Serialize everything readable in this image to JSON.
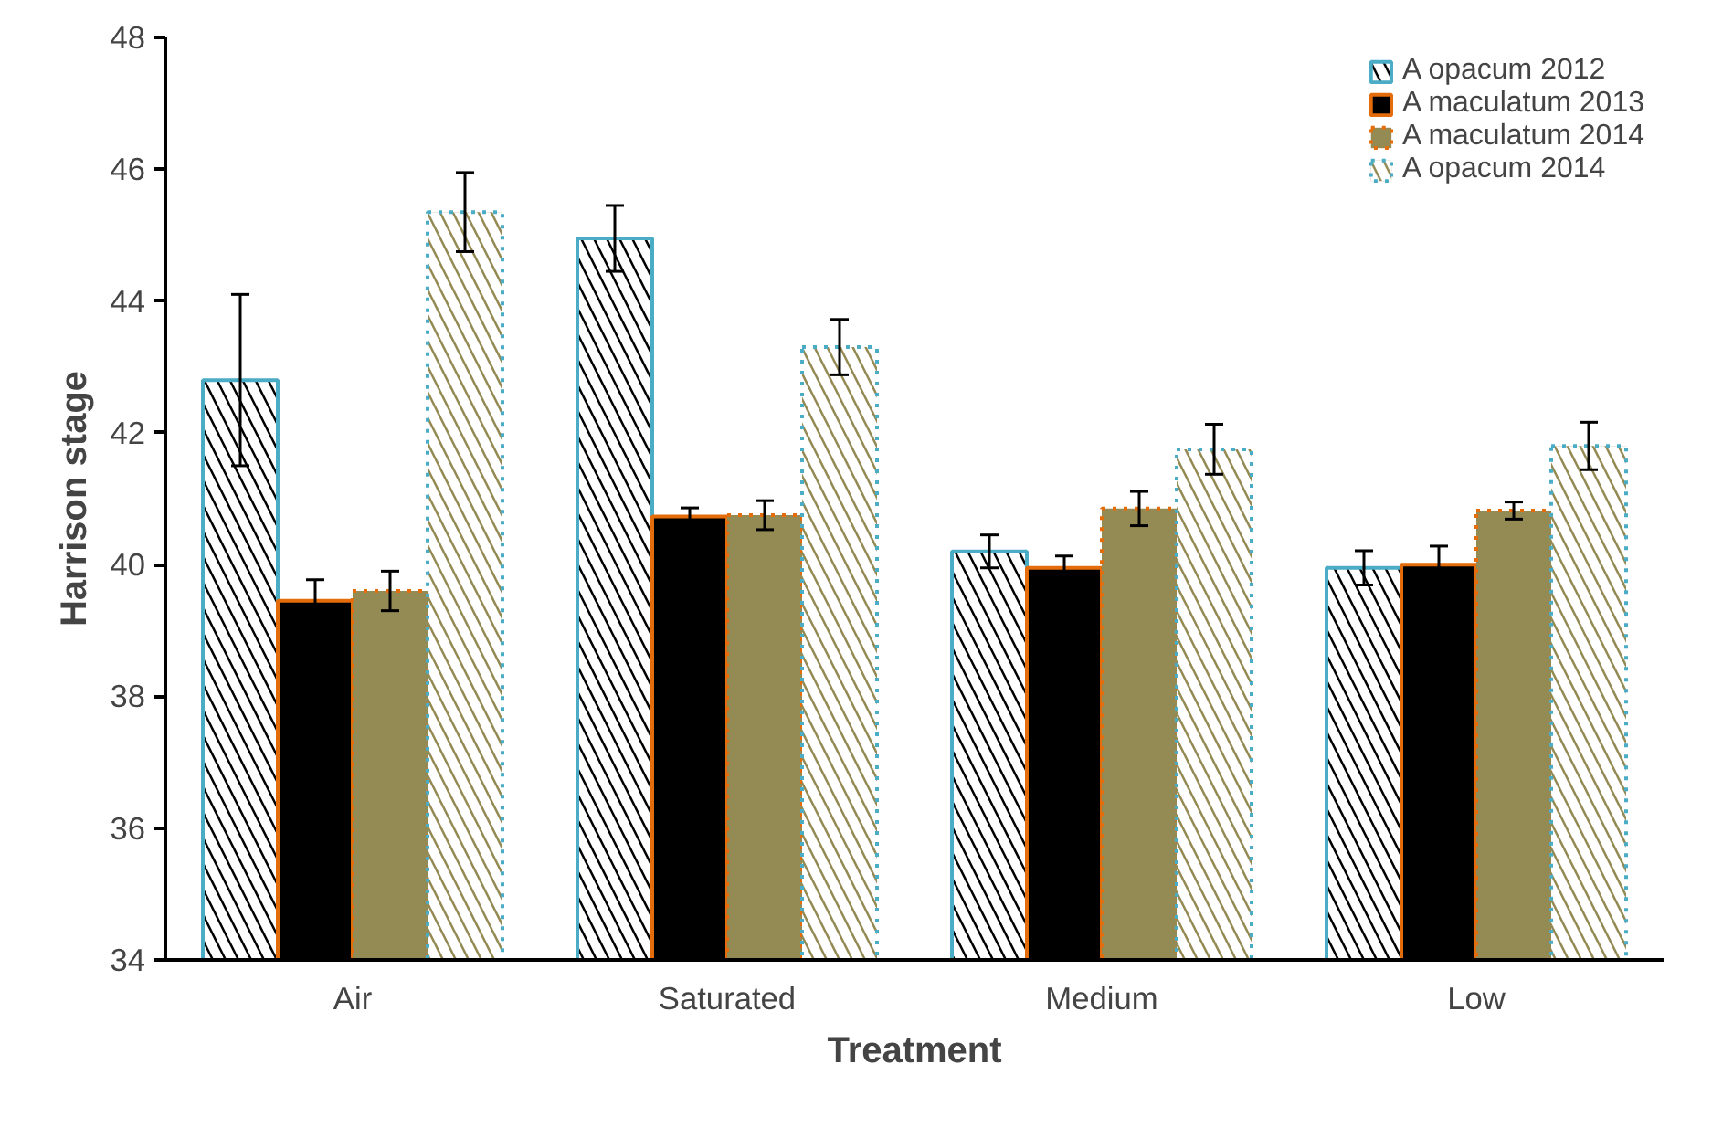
{
  "chart_data": {
    "type": "bar",
    "xlabel": "Treatment",
    "ylabel": "Harrison stage",
    "categories": [
      "Air",
      "Saturated",
      "Medium",
      "Low"
    ],
    "series": [
      {
        "name": "A opacum 2012",
        "color": "#000000",
        "values": [
          42.8,
          44.95,
          40.2,
          39.95
        ],
        "errors": [
          1.3,
          0.5,
          0.25,
          0.26
        ]
      },
      {
        "name": "A maculatum 2013",
        "color": "#000000",
        "values": [
          39.45,
          40.73,
          39.95,
          40.0
        ],
        "errors": [
          0.32,
          0.13,
          0.18,
          0.28
        ]
      },
      {
        "name": "A maculatum 2014",
        "color": "#948a54",
        "values": [
          39.6,
          40.75,
          40.85,
          40.82
        ],
        "errors": [
          0.3,
          0.22,
          0.26,
          0.13
        ]
      },
      {
        "name": "A opacum 2014",
        "color": "#948a54",
        "values": [
          45.35,
          43.3,
          41.75,
          41.8
        ],
        "errors": [
          0.6,
          0.42,
          0.38,
          0.36
        ]
      }
    ],
    "ylim": [
      34,
      48
    ],
    "yticks": [
      34,
      36,
      38,
      40,
      42,
      44,
      46,
      48
    ],
    "grid": false,
    "legend": "top right"
  }
}
